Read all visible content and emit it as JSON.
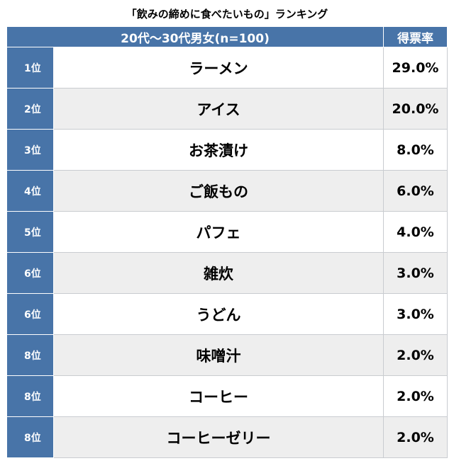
{
  "title": "「飲みの締めに食べたいもの」ランキング",
  "header": {
    "group": "20代〜30代男女(n=100)",
    "rate_label": "得票率"
  },
  "chart_data": {
    "type": "table",
    "title": "「飲みの締めに食べたいもの」ランキング",
    "columns": [
      "",
      "20代〜30代男女(n=100)",
      "得票率"
    ],
    "rows": [
      {
        "rank": "1位",
        "item": "ラーメン",
        "value": 29.0,
        "value_label": "29.0%"
      },
      {
        "rank": "2位",
        "item": "アイス",
        "value": 20.0,
        "value_label": "20.0%"
      },
      {
        "rank": "3位",
        "item": "お茶漬け",
        "value": 8.0,
        "value_label": "8.0%"
      },
      {
        "rank": "4位",
        "item": "ご飯もの",
        "value": 6.0,
        "value_label": "6.0%"
      },
      {
        "rank": "5位",
        "item": "パフェ",
        "value": 4.0,
        "value_label": "4.0%"
      },
      {
        "rank": "6位",
        "item": "雑炊",
        "value": 3.0,
        "value_label": "3.0%"
      },
      {
        "rank": "6位",
        "item": "うどん",
        "value": 3.0,
        "value_label": "3.0%"
      },
      {
        "rank": "8位",
        "item": "味噌汁",
        "value": 2.0,
        "value_label": "2.0%"
      },
      {
        "rank": "8位",
        "item": "コーヒー",
        "value": 2.0,
        "value_label": "2.0%"
      },
      {
        "rank": "8位",
        "item": "コーヒーゼリー",
        "value": 2.0,
        "value_label": "2.0%"
      }
    ]
  },
  "colors": {
    "header_bg": "#4874a8",
    "rank_bg": "#4874a8",
    "alt_row_bg": "#eeeeee"
  }
}
